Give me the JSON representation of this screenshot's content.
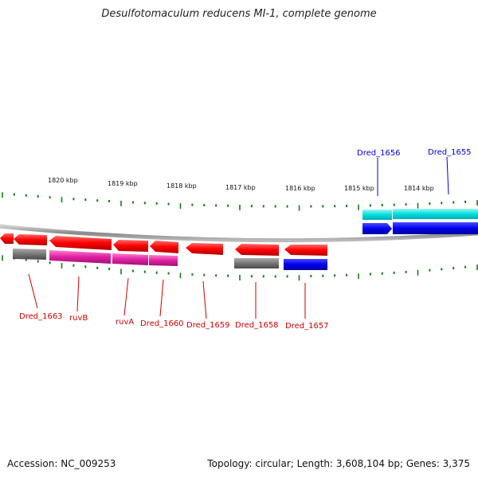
{
  "title": "Desulfotomaculum reducens MI-1, complete genome",
  "footer": {
    "accession": "Accession: NC_009253",
    "summary": "Topology: circular; Length: 3,608,104 bp; Genes: 3,375"
  },
  "scale_labels": [
    "1820 kbp",
    "1819 kbp",
    "1818 kbp",
    "1817 kbp",
    "1816 kbp",
    "1815 kbp",
    "1814 kbp"
  ],
  "gene_labels": {
    "top": [
      {
        "text": "Dred_1656",
        "color": "#0000cc"
      },
      {
        "text": "Dred_1655",
        "color": "#0000cc"
      }
    ],
    "bottom": [
      {
        "text": "Dred_1663",
        "color": "#cc0000"
      },
      {
        "text": "ruvB",
        "color": "#cc0000"
      },
      {
        "text": "ruvA",
        "color": "#cc0000"
      },
      {
        "text": "Dred_1660",
        "color": "#cc0000"
      },
      {
        "text": "Dred_1659",
        "color": "#cc0000"
      },
      {
        "text": "Dred_1658",
        "color": "#cc0000"
      },
      {
        "text": "Dred_1657",
        "color": "#cc0000"
      }
    ]
  },
  "colors": {
    "reverse_gene": "#ff0000",
    "forward_gene": "#0000ee",
    "cds_cyan": "#00e5e5",
    "cds_magenta": "#e020a0",
    "cds_gray": "#777777",
    "backbone": "#888888",
    "tick": "#1a7a1a"
  }
}
